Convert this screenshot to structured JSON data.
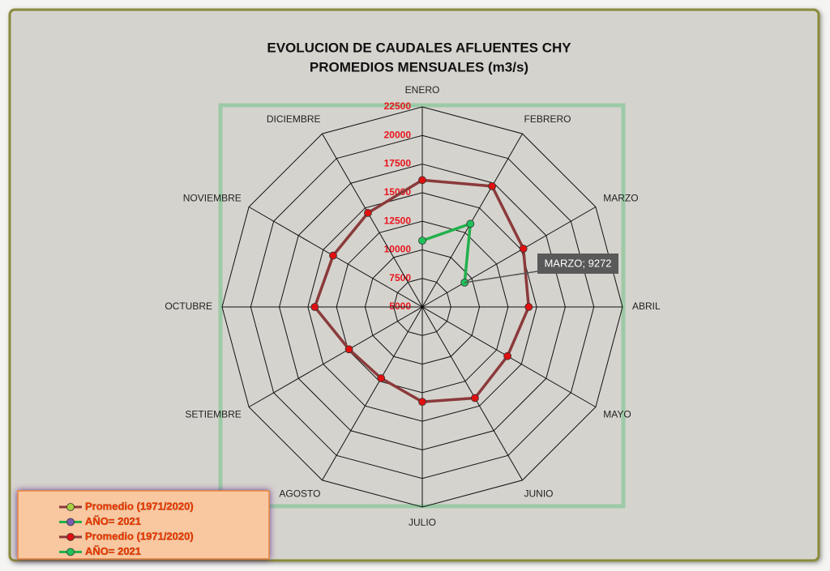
{
  "chart_data": {
    "type": "radar",
    "title_lines": [
      "EVOLUCION DE CAUDALES AFLUENTES CHY",
      "PROMEDIOS MENSUALES (m3/s)"
    ],
    "categories": [
      "ENERO",
      "FEBRERO",
      "MARZO",
      "ABRIL",
      "MAYO",
      "JUNIO",
      "JULIO",
      "AGOSTO",
      "SETIEMBRE",
      "OCTUBRE",
      "NOVIEMBRE",
      "DICIEMBRE"
    ],
    "rlim": [
      5000,
      22500
    ],
    "rticks": [
      5000,
      7500,
      10000,
      12500,
      15000,
      17500,
      20000,
      22500
    ],
    "series": [
      {
        "name": "Promedio (1971/2020)",
        "color": "#8b3a3a",
        "marker_color": "#e01010",
        "values": [
          16100,
          17200,
          15200,
          14300,
          13600,
          14200,
          13300,
          12200,
          12400,
          14400,
          14000,
          14500
        ]
      },
      {
        "name": "AÑO= 2021",
        "color": "#22b14c",
        "marker_color": "#1fc25a",
        "values": [
          10800,
          13400,
          9272,
          null,
          null,
          null,
          null,
          null,
          null,
          null,
          null,
          null
        ],
        "value_labels": [
          null,
          null,
          "MARZO; 9272",
          null,
          null,
          null,
          null,
          null,
          null,
          null,
          null,
          null
        ]
      }
    ],
    "legend": {
      "position": "bottom-left",
      "extra_entries": [
        {
          "name": "Promedio (1971/2020)",
          "line_color": "#8b3a3a",
          "marker_color": "#a8d040"
        },
        {
          "name": "AÑO= 2021",
          "line_color": "#22b14c",
          "marker_color": "#7a5cb0"
        }
      ]
    }
  }
}
